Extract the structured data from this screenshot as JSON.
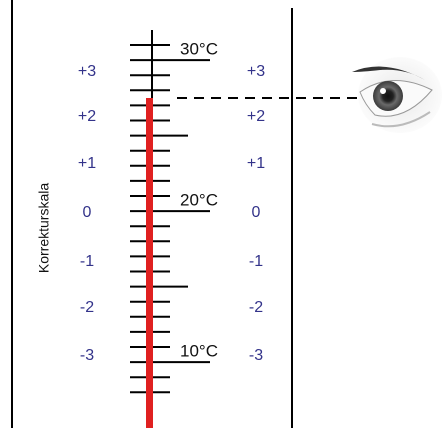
{
  "axis_label": "Korrekturskala",
  "temperatures": [
    "30°C",
    "20°C",
    "10°C"
  ],
  "correction_left": [
    "+3",
    "+2",
    "+1",
    "0",
    "-1",
    "-2",
    "-3"
  ],
  "correction_right": [
    "+3",
    "+2",
    "+1",
    "0",
    "-1",
    "-2",
    "-3"
  ]
}
